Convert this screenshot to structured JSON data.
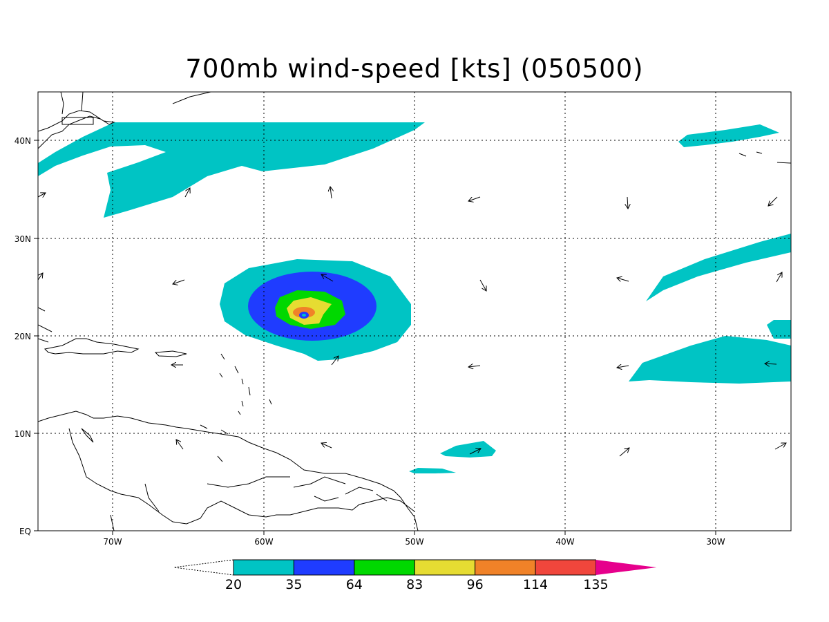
{
  "title": "700mb wind-speed [kts] (050500)",
  "lat_labels": [
    "40N",
    "30N",
    "20N",
    "10N",
    "EQ"
  ],
  "lon_labels": [
    "70W",
    "60W",
    "50W",
    "40W",
    "30W"
  ],
  "colorbar": {
    "labels": [
      "20",
      "35",
      "64",
      "83",
      "96",
      "114",
      "135"
    ],
    "colors": [
      "#00c4c4",
      "#1f3cff",
      "#00d800",
      "#e6dc32",
      "#f08228",
      "#f0463c",
      "#e6008c"
    ]
  },
  "map_extent": {
    "lon_min": -75,
    "lon_max": -25,
    "lat_min": 0,
    "lat_max": 45
  }
}
